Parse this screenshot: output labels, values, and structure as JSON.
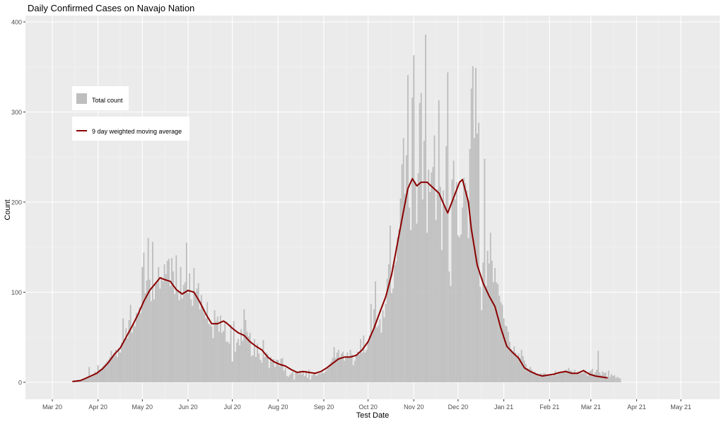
{
  "chart_data": {
    "type": "bar",
    "title": "Daily Confirmed Cases on Navajo Nation",
    "xlabel": "Test Date",
    "ylabel": "Count",
    "start_date": "2020-03-15",
    "end_date": "2021-05-09",
    "ylim": [
      0,
      400
    ],
    "y_ticks": [
      0,
      100,
      200,
      300,
      400
    ],
    "x_ticks": [
      {
        "date": "2020-03-01",
        "label": "Mar 20"
      },
      {
        "date": "2020-04-01",
        "label": "Apr 20"
      },
      {
        "date": "2020-05-01",
        "label": "May 20"
      },
      {
        "date": "2020-06-01",
        "label": "Jun 20"
      },
      {
        "date": "2020-07-01",
        "label": "Jul 20"
      },
      {
        "date": "2020-08-01",
        "label": "Aug 20"
      },
      {
        "date": "2020-09-01",
        "label": "Sep 20"
      },
      {
        "date": "2020-10-01",
        "label": "Oct 20"
      },
      {
        "date": "2020-11-01",
        "label": "Nov 20"
      },
      {
        "date": "2020-12-01",
        "label": "Dec 20"
      },
      {
        "date": "2021-01-01",
        "label": "Jan 21"
      },
      {
        "date": "2021-02-01",
        "label": "Feb 21"
      },
      {
        "date": "2021-03-01",
        "label": "Mar 21"
      },
      {
        "date": "2021-04-01",
        "label": "Apr 21"
      },
      {
        "date": "2021-05-01",
        "label": "May 21"
      }
    ],
    "grid": true,
    "legend_position": "top-left",
    "series": [
      {
        "name": "Total count",
        "kind": "bar",
        "color": "#bebebe",
        "values": [
          1,
          1,
          1,
          2,
          2,
          2,
          3,
          3,
          4,
          4,
          5,
          17,
          6,
          7,
          8,
          12,
          10,
          19,
          14,
          15,
          17,
          19,
          21,
          23,
          25,
          28,
          35,
          29,
          33,
          36,
          28,
          38,
          33,
          44,
          71,
          48,
          60,
          49,
          69,
          86,
          55,
          66,
          62,
          77,
          76,
          83,
          77,
          128,
          144,
          99,
          113,
          160,
          114,
          90,
          156,
          92,
          109,
          110,
          128,
          104,
          117,
          112,
          131,
          120,
          135,
          137,
          107,
          138,
          123,
          98,
          141,
          102,
          91,
          128,
          93,
          108,
          111,
          155,
          99,
          121,
          92,
          85,
          127,
          100,
          104,
          110,
          81,
          97,
          84,
          76,
          71,
          89,
          65,
          64,
          62,
          49,
          80,
          68,
          73,
          56,
          74,
          55,
          57,
          68,
          45,
          45,
          43,
          64,
          23,
          68,
          34,
          44,
          48,
          41,
          59,
          46,
          81,
          69,
          56,
          51,
          55,
          29,
          30,
          48,
          28,
          43,
          32,
          25,
          22,
          47,
          28,
          33,
          31,
          16,
          28,
          23,
          26,
          17,
          25,
          25,
          18,
          26,
          27,
          13,
          16,
          7,
          6,
          8,
          10,
          12,
          3,
          11,
          11,
          9,
          13,
          9,
          13,
          7,
          13,
          5,
          14,
          3,
          8,
          9,
          11,
          7,
          9,
          10,
          10,
          12,
          10,
          12,
          14,
          16,
          20,
          23,
          27,
          39,
          27,
          33,
          36,
          28,
          32,
          34,
          24,
          28,
          33,
          28,
          36,
          31,
          19,
          24,
          31,
          34,
          31,
          48,
          33,
          52,
          33,
          36,
          45,
          52,
          87,
          57,
          81,
          112,
          61,
          63,
          70,
          55,
          80,
          72,
          87,
          115,
          131,
          174,
          99,
          104,
          130,
          134,
          161,
          170,
          204,
          242,
          271,
          209,
          252,
          341,
          194,
          169,
          316,
          363,
          223,
          176,
          232,
          310,
          321,
          203,
          268,
          386,
          166,
          236,
          211,
          233,
          239,
          274,
          180,
          214,
          313,
          217,
          147,
          213,
          195,
          262,
          344,
          123,
          107,
          225,
          246,
          203,
          222,
          163,
          161,
          164,
          194,
          227,
          221,
          213,
          160,
          259,
          326,
          351,
          271,
          349,
          276,
          288,
          106,
          80,
          133,
          248,
          107,
          146,
          132,
          166,
          135,
          111,
          127,
          111,
          109,
          96,
          89,
          86,
          71,
          63,
          62,
          56,
          45,
          37,
          35,
          40,
          33,
          29,
          32,
          27,
          36,
          29,
          24,
          20,
          16,
          15,
          17,
          14,
          11,
          12,
          9,
          9,
          7,
          10,
          9,
          10,
          10,
          8,
          8,
          7,
          9,
          7,
          8,
          13,
          8,
          10,
          10,
          11,
          12,
          13,
          14,
          13,
          16,
          13,
          13,
          11,
          14,
          9,
          12,
          9,
          10,
          10,
          11,
          12,
          9,
          7,
          12,
          13,
          15,
          9,
          11,
          14,
          35,
          11,
          8,
          12,
          10,
          11,
          6,
          13,
          6,
          9,
          7,
          8,
          5,
          6,
          5,
          4
        ]
      },
      {
        "name": "9 day weighted moving average",
        "kind": "line",
        "color": "#8b0000",
        "points": [
          [
            0,
            1
          ],
          [
            5,
            2
          ],
          [
            8,
            4
          ],
          [
            12,
            7
          ],
          [
            16,
            10
          ],
          [
            20,
            15
          ],
          [
            24,
            22
          ],
          [
            28,
            31
          ],
          [
            32,
            38
          ],
          [
            36,
            50
          ],
          [
            40,
            62
          ],
          [
            44,
            75
          ],
          [
            48,
            90
          ],
          [
            52,
            102
          ],
          [
            56,
            110
          ],
          [
            59,
            116
          ],
          [
            62,
            114
          ],
          [
            66,
            112
          ],
          [
            70,
            103
          ],
          [
            74,
            98
          ],
          [
            78,
            102
          ],
          [
            82,
            100
          ],
          [
            86,
            89
          ],
          [
            90,
            76
          ],
          [
            94,
            65
          ],
          [
            98,
            65
          ],
          [
            102,
            68
          ],
          [
            104,
            66
          ],
          [
            108,
            60
          ],
          [
            112,
            55
          ],
          [
            116,
            52
          ],
          [
            120,
            45
          ],
          [
            124,
            40
          ],
          [
            128,
            36
          ],
          [
            132,
            28
          ],
          [
            136,
            23
          ],
          [
            140,
            20
          ],
          [
            144,
            18
          ],
          [
            148,
            14
          ],
          [
            152,
            11
          ],
          [
            156,
            12
          ],
          [
            160,
            11
          ],
          [
            164,
            10
          ],
          [
            168,
            12
          ],
          [
            172,
            16
          ],
          [
            176,
            21
          ],
          [
            180,
            26
          ],
          [
            184,
            28
          ],
          [
            188,
            28
          ],
          [
            192,
            30
          ],
          [
            196,
            36
          ],
          [
            200,
            45
          ],
          [
            204,
            60
          ],
          [
            208,
            78
          ],
          [
            212,
            95
          ],
          [
            216,
            120
          ],
          [
            220,
            155
          ],
          [
            224,
            190
          ],
          [
            227,
            215
          ],
          [
            230,
            226
          ],
          [
            233,
            218
          ],
          [
            236,
            222
          ],
          [
            240,
            222
          ],
          [
            244,
            216
          ],
          [
            248,
            210
          ],
          [
            252,
            195
          ],
          [
            254,
            188
          ],
          [
            258,
            205
          ],
          [
            262,
            222
          ],
          [
            264,
            225
          ],
          [
            268,
            200
          ],
          [
            270,
            170
          ],
          [
            274,
            130
          ],
          [
            278,
            110
          ],
          [
            282,
            96
          ],
          [
            286,
            84
          ],
          [
            290,
            60
          ],
          [
            294,
            40
          ],
          [
            298,
            33
          ],
          [
            302,
            27
          ],
          [
            306,
            16
          ],
          [
            310,
            12
          ],
          [
            314,
            9
          ],
          [
            318,
            7
          ],
          [
            322,
            8
          ],
          [
            326,
            9
          ],
          [
            330,
            11
          ],
          [
            334,
            12
          ],
          [
            338,
            10
          ],
          [
            342,
            10
          ],
          [
            346,
            13
          ],
          [
            350,
            9
          ],
          [
            354,
            7
          ],
          [
            358,
            6
          ],
          [
            362,
            5
          ]
        ]
      }
    ]
  }
}
